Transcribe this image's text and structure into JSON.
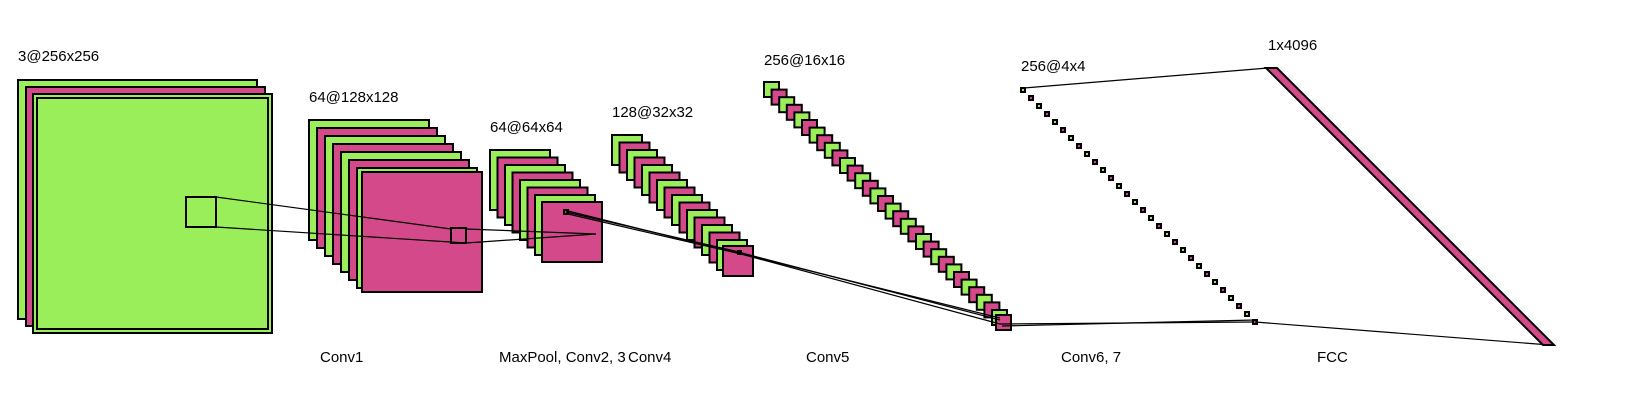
{
  "colors": {
    "green": "#99ee5a",
    "pink": "#d4498a",
    "stroke": "#000000"
  },
  "layers": [
    {
      "id": "input",
      "label": "3@256x256"
    },
    {
      "id": "conv1",
      "label": "64@128x128"
    },
    {
      "id": "conv2",
      "label": "64@64x64"
    },
    {
      "id": "conv4",
      "label": "128@32x32"
    },
    {
      "id": "conv5",
      "label": "256@16x16"
    },
    {
      "id": "conv6",
      "label": "256@4x4"
    },
    {
      "id": "fcc",
      "label": "1x4096"
    }
  ],
  "stages": [
    {
      "id": "conv1",
      "label": "Conv1"
    },
    {
      "id": "maxpool",
      "label": "MaxPool, Conv2, 3"
    },
    {
      "id": "conv4",
      "label": "Conv4"
    },
    {
      "id": "conv5",
      "label": "Conv5"
    },
    {
      "id": "conv6",
      "label": "Conv6, 7"
    },
    {
      "id": "fcc",
      "label": "FCC"
    }
  ]
}
